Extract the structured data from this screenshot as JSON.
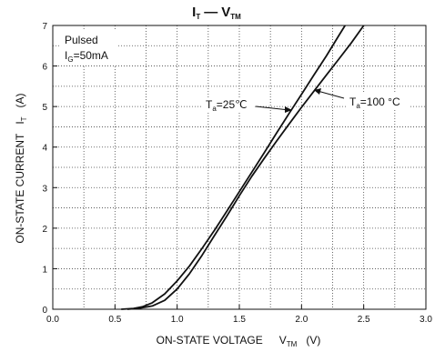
{
  "chart_data": {
    "type": "line",
    "title": {
      "i_main": "I",
      "i_sub": "T",
      "dash": "—",
      "v_main": "V",
      "v_sub": "TM"
    },
    "xlabel": {
      "text": "ON-STATE VOLTAGE",
      "sym": "V",
      "sub": "TM",
      "unit": "(V)"
    },
    "ylabel": {
      "text": "ON-STATE CURRENT",
      "sym": "I",
      "sub": "T",
      "unit": "(A)"
    },
    "xlim": [
      0,
      3.0
    ],
    "ylim": [
      0,
      7
    ],
    "x_ticks": [
      "0.0",
      "0.5",
      "1.0",
      "1.5",
      "2.0",
      "2.5",
      "3.0"
    ],
    "y_ticks": [
      "0",
      "1",
      "2",
      "3",
      "4",
      "5",
      "6",
      "7"
    ],
    "grid": true,
    "grid_style": "dotted",
    "conditions": {
      "line1": "Pulsed",
      "line2_main": "I",
      "line2_sub": "G",
      "line2_rest": "=50mA"
    },
    "series": [
      {
        "name": "Ta=25℃",
        "label": {
          "main": "T",
          "sub": "a",
          "rest": "=25℃"
        },
        "x": [
          0.55,
          0.65,
          0.72,
          0.8,
          0.9,
          1.0,
          1.1,
          1.2,
          1.3,
          1.4,
          1.5,
          1.6,
          1.7,
          1.8,
          1.9,
          2.0,
          2.1,
          2.2,
          2.3,
          2.35
        ],
        "y": [
          0.0,
          0.02,
          0.06,
          0.16,
          0.38,
          0.7,
          1.07,
          1.5,
          1.95,
          2.42,
          2.9,
          3.38,
          3.86,
          4.35,
          4.83,
          5.3,
          5.78,
          6.25,
          6.75,
          7.0
        ]
      },
      {
        "name": "Ta=100°C",
        "label": {
          "main": "T",
          "sub": "a",
          "rest": "=100 °C"
        },
        "x": [
          0.6,
          0.7,
          0.8,
          0.9,
          1.0,
          1.1,
          1.2,
          1.3,
          1.4,
          1.5,
          1.6,
          1.7,
          1.8,
          1.9,
          2.0,
          2.1,
          2.2,
          2.3,
          2.4,
          2.5
        ],
        "y": [
          0.0,
          0.03,
          0.08,
          0.22,
          0.5,
          0.88,
          1.33,
          1.82,
          2.3,
          2.8,
          3.28,
          3.72,
          4.15,
          4.57,
          4.98,
          5.38,
          5.78,
          6.17,
          6.57,
          7.0
        ]
      }
    ]
  }
}
